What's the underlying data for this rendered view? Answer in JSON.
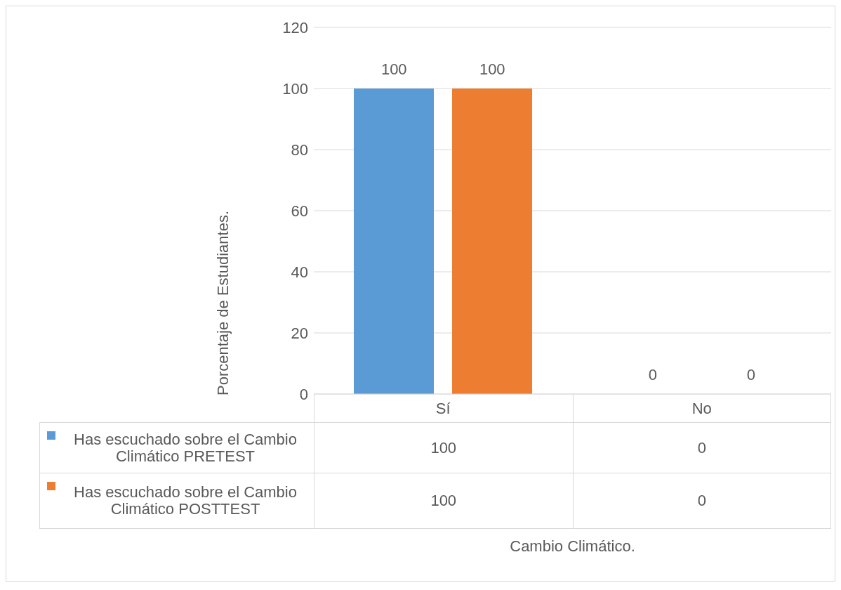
{
  "chart_data": {
    "type": "bar",
    "annotations": [
      "Cambio Climático."
    ],
    "ylabel": "Porcentaje de Estudiantes.",
    "categories": [
      "Sí",
      "No"
    ],
    "series": [
      {
        "name": "Has escuchado sobre el Cambio Climático PRETEST",
        "color": "#5b9bd5",
        "values": [
          100,
          0
        ],
        "value_labels": [
          "100",
          "0"
        ]
      },
      {
        "name": "Has escuchado sobre el Cambio Climático POSTTEST",
        "color": "#ed7d31",
        "values": [
          100,
          0
        ],
        "value_labels": [
          "100",
          "0"
        ]
      }
    ],
    "ylim": [
      0,
      120
    ],
    "yticks": [
      0,
      20,
      40,
      60,
      80,
      100,
      120
    ],
    "grid": "y",
    "legend": "bottom"
  }
}
